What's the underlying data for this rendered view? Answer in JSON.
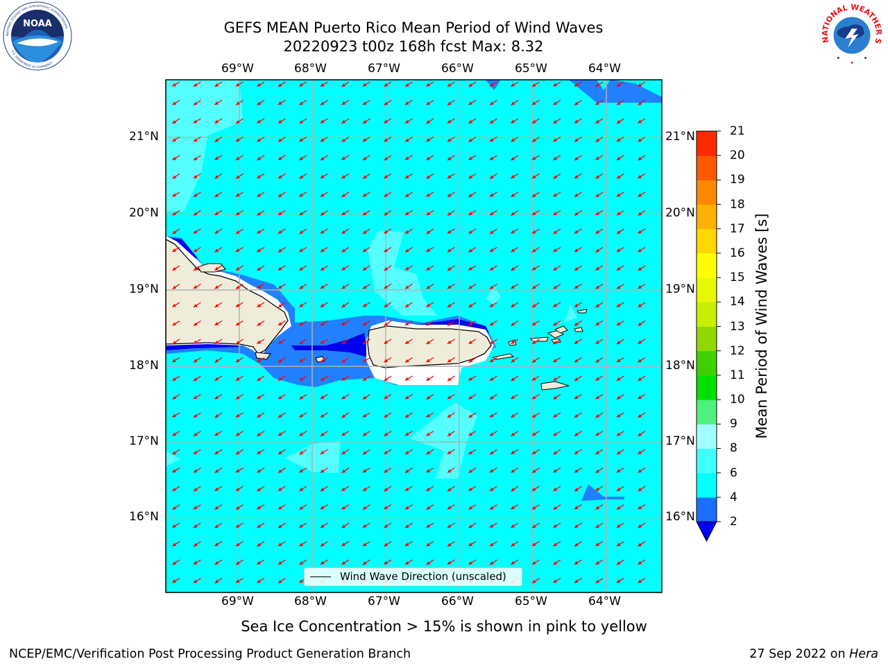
{
  "title": {
    "line1": "GEFS MEAN Puerto Rico Mean Period of Wind Waves",
    "line2": "20220923 t00z 168h fcst   Max: 8.32"
  },
  "logos": {
    "left": {
      "text": "NOAA",
      "ring_text": "NATIONAL OCEANIC AND ATMOSPHERIC ADMINISTRATION",
      "bottom_text": "U.S. DEPARTMENT OF COMMERCE"
    },
    "right": {
      "ring_text": "NATIONAL WEATHER SERVICE"
    }
  },
  "map": {
    "lon_labels": [
      "69°W",
      "68°W",
      "67°W",
      "66°W",
      "65°W",
      "64°W"
    ],
    "lat_labels": [
      "21°N",
      "20°N",
      "19°N",
      "18°N",
      "17°N",
      "16°N"
    ],
    "lon_range": [
      -70.0,
      -63.25
    ],
    "lat_range": [
      15.0,
      21.75
    ],
    "grid": true,
    "arrow_direction": "toward southwest",
    "colors": {
      "ocean_main": "#00ffff",
      "ocean_light": "#55ffff",
      "ocean_mid": "#2080ff",
      "ocean_dark": "#0000ee",
      "land": "#efedda",
      "arrow": "#ff0000"
    }
  },
  "legend": {
    "label": "Wind Wave Direction (unscaled)"
  },
  "colorbar": {
    "label": "Mean Period of Wind Waves [s]",
    "ticks": [
      "2",
      "4",
      "6",
      "8",
      "9",
      "10",
      "11",
      "12",
      "13",
      "14",
      "15",
      "16",
      "17",
      "18",
      "19",
      "20",
      "21"
    ],
    "colors": [
      "#1b6fff",
      "#00ffff",
      "#40ffff",
      "#a0ffff",
      "#50f080",
      "#00e000",
      "#40d000",
      "#90d800",
      "#c8ee00",
      "#e8f800",
      "#ffff00",
      "#ffd800",
      "#ffb000",
      "#ff8800",
      "#ff5800",
      "#ff2800"
    ],
    "extend_color": "#0000ff"
  },
  "subtitle": "Sea Ice Concentration > 15% is shown in pink to yellow",
  "footer": {
    "left": "NCEP/EMC/Verification Post Processing Product Generation Branch",
    "right_prefix": "27 Sep 2022 on ",
    "right_host": "Hera"
  }
}
